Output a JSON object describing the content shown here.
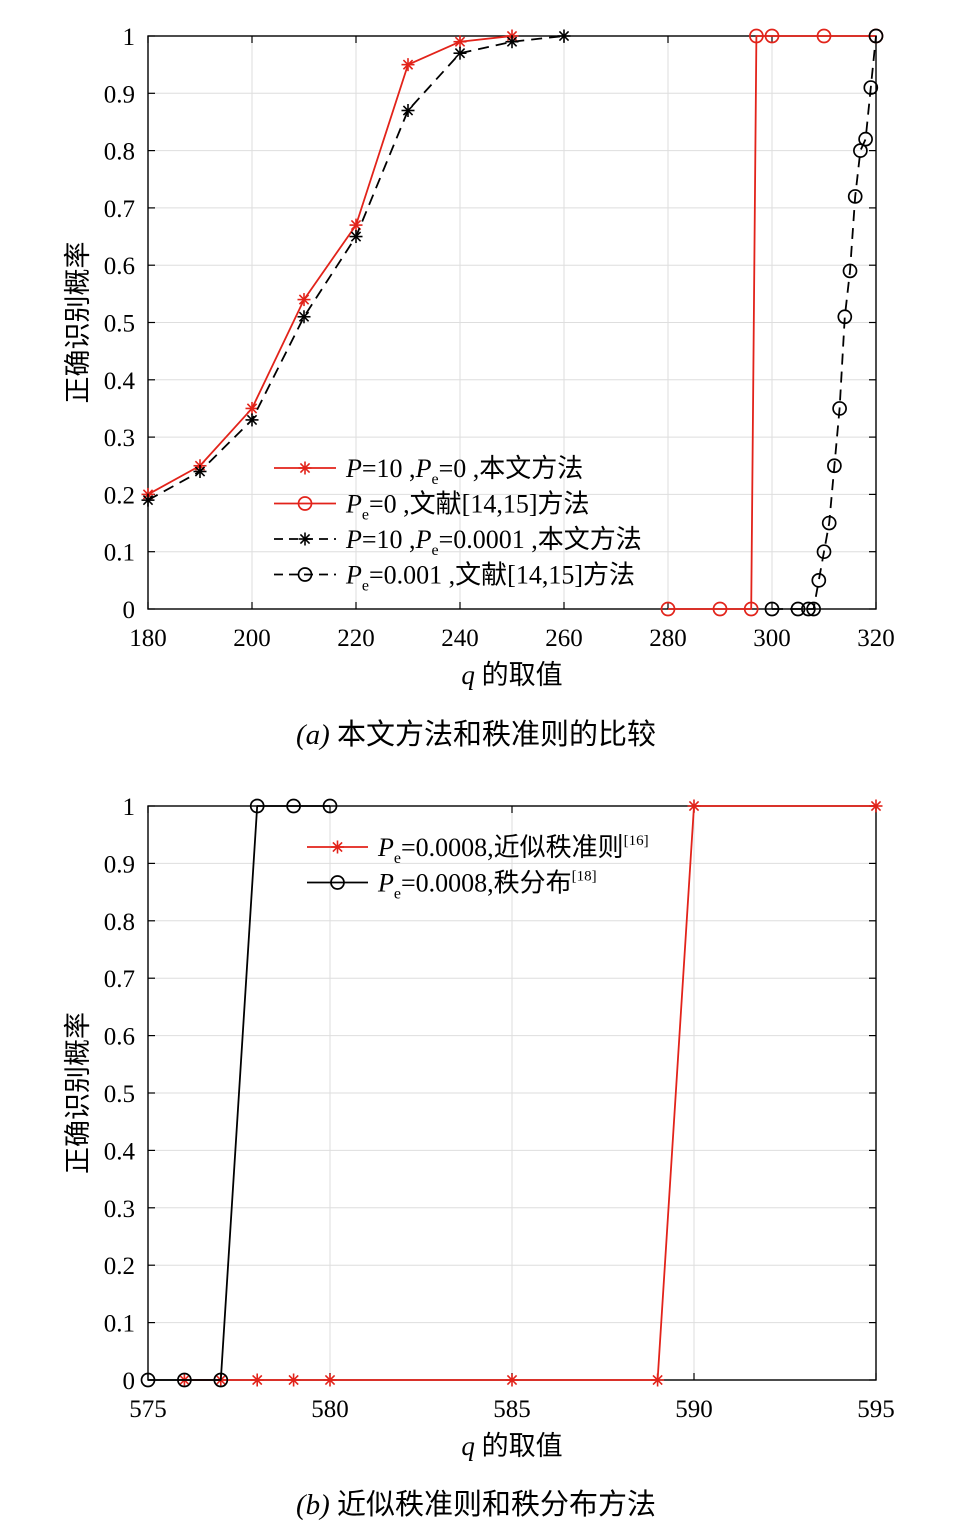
{
  "chart_data": [
    {
      "type": "line",
      "xlim": [
        180,
        320
      ],
      "ylim": [
        0,
        1
      ],
      "xticks": [
        180,
        200,
        220,
        240,
        260,
        280,
        300,
        320
      ],
      "yticks": [
        0,
        0.1,
        0.2,
        0.3,
        0.4,
        0.5,
        0.6,
        0.7,
        0.8,
        0.9,
        1
      ],
      "grid": true,
      "legend_location": "lower-left",
      "xlabel_parts": [
        {
          "text": "q",
          "style": "italic"
        },
        {
          "text": " 的取值",
          "style": "normal"
        }
      ],
      "ylabel": "正确识别概率",
      "caption_parts": [
        {
          "text": "(a)",
          "style": "italic"
        },
        {
          "text": " 本文方法和秩准则的比较",
          "style": "normal"
        }
      ],
      "series": [
        {
          "name_parts": [
            {
              "text": "P",
              "style": "italic"
            },
            {
              "text": "=10 ,",
              "style": "normal"
            },
            {
              "text": "P",
              "style": "italic"
            },
            {
              "text": "e",
              "style": "sub"
            },
            {
              "text": "=0 ,本文方法",
              "style": "normal"
            }
          ],
          "color": "#e2231a",
          "line": "solid",
          "marker": "asterisk",
          "x": [
            180,
            190,
            200,
            210,
            220,
            230,
            240,
            250
          ],
          "y": [
            0.2,
            0.25,
            0.35,
            0.54,
            0.67,
            0.95,
            0.99,
            1
          ]
        },
        {
          "name_parts": [
            {
              "text": "P",
              "style": "italic"
            },
            {
              "text": "e",
              "style": "sub"
            },
            {
              "text": "=0 ,文献[14,15]方法",
              "style": "normal"
            }
          ],
          "color": "#e2231a",
          "line": "solid",
          "marker": "circle",
          "x": [
            280,
            290,
            296,
            297,
            300,
            310,
            320
          ],
          "y": [
            0,
            0,
            0,
            1,
            1,
            1,
            1
          ]
        },
        {
          "name_parts": [
            {
              "text": "P",
              "style": "italic"
            },
            {
              "text": "=10 ,",
              "style": "normal"
            },
            {
              "text": "P",
              "style": "italic"
            },
            {
              "text": "e",
              "style": "sub"
            },
            {
              "text": "=0.0001 ,本文方法",
              "style": "normal"
            }
          ],
          "color": "#000000",
          "line": "dashed",
          "marker": "asterisk",
          "x": [
            180,
            190,
            200,
            210,
            220,
            230,
            240,
            250,
            260
          ],
          "y": [
            0.19,
            0.24,
            0.33,
            0.51,
            0.65,
            0.87,
            0.97,
            0.99,
            1
          ]
        },
        {
          "name_parts": [
            {
              "text": "P",
              "style": "italic"
            },
            {
              "text": "e",
              "style": "sub"
            },
            {
              "text": "=0.001 ,文献[14,15]方法",
              "style": "normal"
            }
          ],
          "color": "#000000",
          "line": "dashed",
          "marker": "circle",
          "x": [
            300,
            305,
            307,
            308,
            309,
            310,
            311,
            312,
            313,
            314,
            315,
            316,
            317,
            318,
            319,
            320
          ],
          "y": [
            0,
            0,
            0,
            0,
            0.05,
            0.1,
            0.15,
            0.25,
            0.35,
            0.51,
            0.59,
            0.72,
            0.8,
            0.82,
            0.91,
            1
          ]
        }
      ]
    },
    {
      "type": "line",
      "xlim": [
        575,
        595
      ],
      "ylim": [
        0,
        1
      ],
      "xticks": [
        575,
        580,
        585,
        590,
        595
      ],
      "yticks": [
        0,
        0.1,
        0.2,
        0.3,
        0.4,
        0.5,
        0.6,
        0.7,
        0.8,
        0.9,
        1
      ],
      "grid": true,
      "legend_location": "top-center",
      "xlabel_parts": [
        {
          "text": "q",
          "style": "italic"
        },
        {
          "text": " 的取值",
          "style": "normal"
        }
      ],
      "ylabel": "正确识别概率",
      "caption_parts": [
        {
          "text": "(b)",
          "style": "italic"
        },
        {
          "text": " 近似秩准则和秩分布方法",
          "style": "normal"
        }
      ],
      "series": [
        {
          "name_parts": [
            {
              "text": "P",
              "style": "italic"
            },
            {
              "text": "e",
              "style": "sub"
            },
            {
              "text": "=0.0008,近似秩准则",
              "style": "normal"
            },
            {
              "text": "[16]",
              "style": "sup"
            }
          ],
          "color": "#e2231a",
          "line": "solid",
          "marker": "asterisk",
          "x": [
            576,
            577,
            578,
            579,
            580,
            585,
            589,
            590,
            595
          ],
          "y": [
            0,
            0,
            0,
            0,
            0,
            0,
            0,
            1,
            1
          ]
        },
        {
          "name_parts": [
            {
              "text": "P",
              "style": "italic"
            },
            {
              "text": "e",
              "style": "sub"
            },
            {
              "text": "=0.0008,秩分布",
              "style": "normal"
            },
            {
              "text": "[18]",
              "style": "sup"
            }
          ],
          "color": "#000000",
          "line": "solid",
          "marker": "circle",
          "x": [
            575,
            576,
            577,
            578,
            579,
            580
          ],
          "y": [
            0,
            0,
            0,
            1,
            1,
            1
          ]
        }
      ]
    }
  ]
}
